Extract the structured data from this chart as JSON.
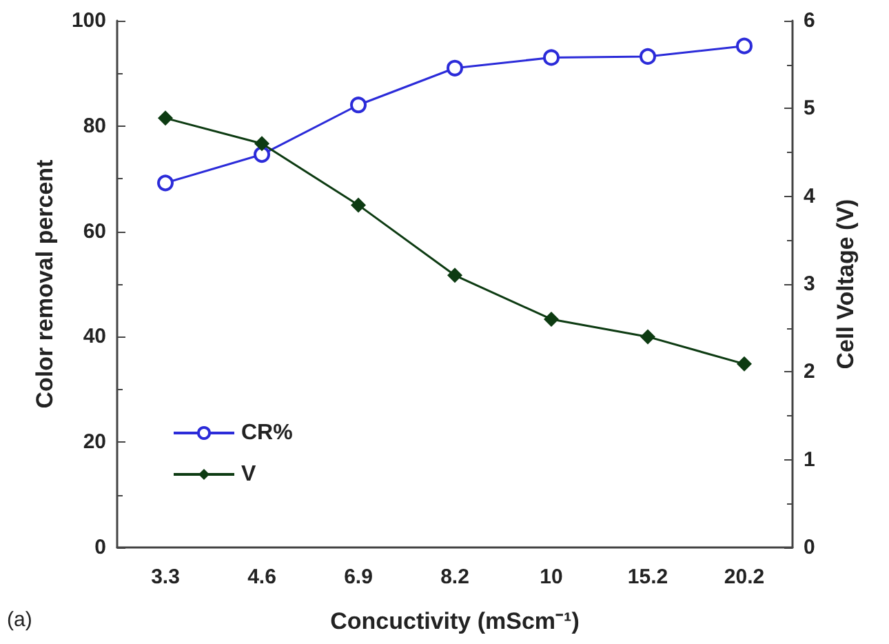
{
  "chart_data": {
    "type": "line",
    "xlabel": "Concuctivity (mScm⁻¹)",
    "ylabel": "Color removal percent",
    "y2label": "Cell Voltage (V)",
    "categories": [
      "3.3",
      "4.6",
      "6.9",
      "8.2",
      "10",
      "15.2",
      "20.2"
    ],
    "series": [
      {
        "name": "CR%",
        "color": "#2b2bd9",
        "marker": "circle",
        "values": [
          69.2,
          74.6,
          84,
          91,
          93,
          93.2,
          95.2
        ]
      },
      {
        "name": "V",
        "color": "#0d3b12",
        "marker": "diamond",
        "axis": "y2",
        "values": [
          4.89,
          4.6,
          3.9,
          3.1,
          2.6,
          2.4,
          2.09
        ]
      }
    ],
    "ylim": [
      0,
      100
    ],
    "yticks": [
      0,
      20,
      40,
      60,
      80,
      100
    ],
    "y2lim": [
      0,
      6
    ],
    "y2ticks": [
      0,
      1,
      2,
      3,
      4,
      5,
      6
    ],
    "legend": "bottom left",
    "grid": false,
    "annotations": [
      "(a)"
    ]
  }
}
